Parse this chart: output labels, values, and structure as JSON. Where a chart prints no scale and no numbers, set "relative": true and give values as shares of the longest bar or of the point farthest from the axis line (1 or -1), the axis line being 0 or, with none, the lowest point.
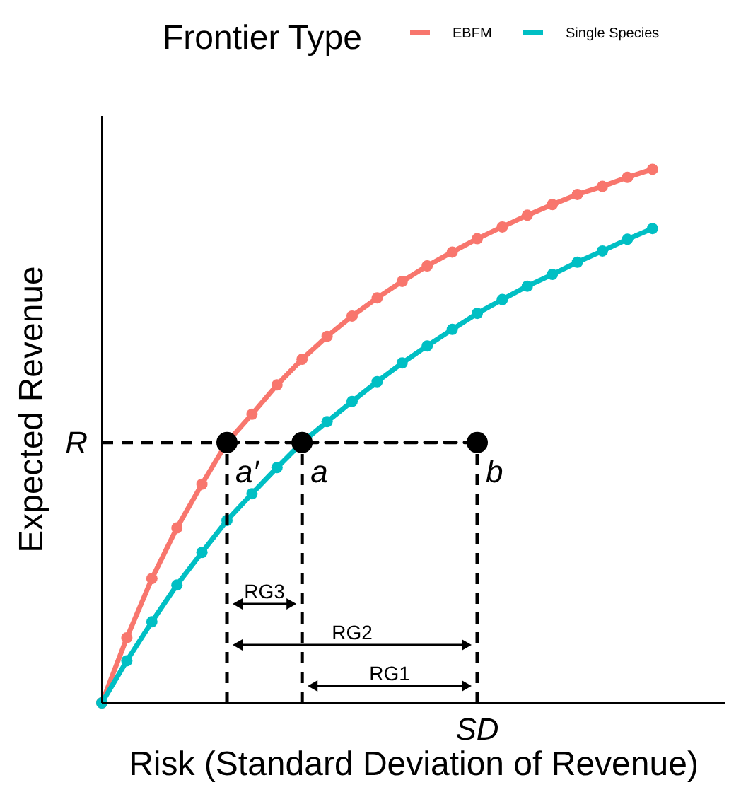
{
  "chart_data": {
    "type": "line",
    "relative": true,
    "xlabel": "Risk (Standard Deviation of Revenue)",
    "ylabel": "Expected Revenue",
    "legend_title": "Frontier Type",
    "legend": "top",
    "marker": "circle",
    "line_style": "solid",
    "categories": [
      null,
      null,
      null,
      null,
      null,
      null,
      null,
      null,
      null,
      null,
      null,
      null,
      null,
      null,
      null,
      null,
      null,
      null,
      null,
      null,
      null,
      null,
      null
    ],
    "series": [
      {
        "name": "EBFM",
        "color": "#f8766d",
        "values": [
          0,
          0.122,
          0.233,
          0.328,
          0.41,
          0.488,
          0.541,
          0.596,
          0.644,
          0.687,
          0.725,
          0.759,
          0.79,
          0.819,
          0.845,
          0.87,
          0.892,
          0.914,
          0.934,
          0.953,
          0.968,
          0.985,
          1
        ]
      },
      {
        "name": "Single Species",
        "color": "#00bfc4",
        "values": [
          0,
          0.079,
          0.152,
          0.221,
          0.282,
          0.342,
          0.392,
          0.441,
          0.488,
          0.527,
          0.565,
          0.602,
          0.637,
          0.669,
          0.7,
          0.73,
          0.756,
          0.781,
          0.803,
          0.826,
          0.847,
          0.869,
          0.889
        ]
      },
      {
        "color": "#000000",
        "line_style": "dashed",
        "values": [
          null,
          null,
          null,
          null,
          null,
          0.488,
          null,
          null,
          0.488,
          null,
          null,
          null,
          null,
          null,
          null,
          0.488,
          null,
          null,
          null,
          null,
          null,
          null,
          null
        ]
      }
    ],
    "ref_lines": [
      {
        "axis": "y",
        "value": 0.488,
        "label": "R",
        "line_style": "dashed",
        "color": "#000000"
      }
    ],
    "annotations": [
      "a′",
      "a",
      "b",
      "SD",
      "RG3",
      "RG2",
      "RG1"
    ]
  }
}
